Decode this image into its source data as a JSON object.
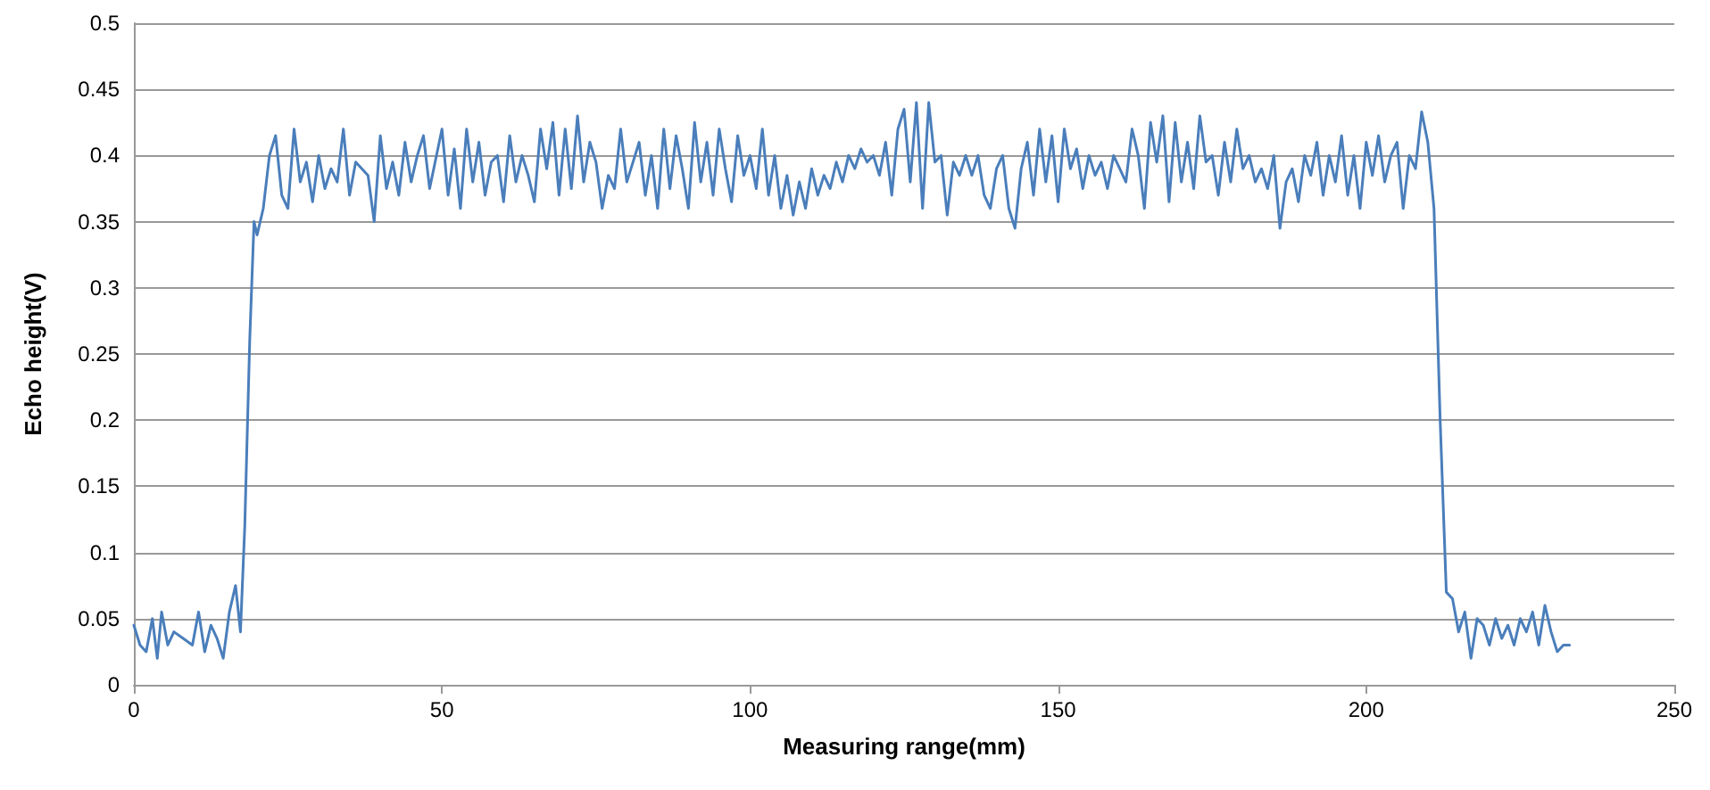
{
  "chart_data": {
    "type": "line",
    "xlabel": "Measuring range(mm)",
    "ylabel": "Echo height(V)",
    "xlim": [
      0,
      250
    ],
    "xticks": [
      0,
      50,
      100,
      150,
      200,
      250
    ],
    "ylim": [
      0,
      0.5
    ],
    "yticks": [
      0,
      0.05,
      0.1,
      0.15,
      0.2,
      0.25,
      0.3,
      0.35,
      0.4,
      0.45,
      0.5
    ],
    "grid": "y",
    "marker": "none",
    "line_style": "solid",
    "series": [
      {
        "color": "#4a7ebb",
        "x": [
          0,
          1,
          2,
          3,
          3.8,
          4.5,
          5.5,
          6.5,
          8,
          9.5,
          10.5,
          11.5,
          12.5,
          13.5,
          14.5,
          15.5,
          16.5,
          17.3,
          18,
          18.8,
          19.5,
          20,
          21,
          22,
          23,
          24,
          25,
          26,
          27,
          28,
          29,
          30,
          31,
          32,
          33,
          34,
          35,
          36,
          38,
          39,
          40,
          41,
          42,
          43,
          44,
          45,
          46,
          47,
          48,
          50,
          51,
          52,
          53,
          54,
          55,
          56,
          57,
          58,
          59,
          60,
          61,
          62,
          63,
          64,
          65,
          66,
          67,
          68,
          69,
          70,
          71,
          72,
          73,
          74,
          75,
          76,
          77,
          78,
          79,
          80,
          81,
          82,
          83,
          84,
          85,
          86,
          87,
          88,
          89,
          90,
          91,
          92,
          93,
          94,
          95,
          96,
          97,
          98,
          99,
          100,
          101,
          102,
          103,
          104,
          105,
          106,
          107,
          108,
          109,
          110,
          111,
          112,
          113,
          114,
          115,
          116,
          117,
          118,
          119,
          120,
          121,
          122,
          123,
          124,
          125,
          126,
          127,
          128,
          129,
          130,
          131,
          132,
          133,
          134,
          135,
          136,
          137,
          138,
          139,
          140,
          141,
          142,
          143,
          144,
          145,
          146,
          147,
          148,
          149,
          150,
          151,
          152,
          153,
          154,
          155,
          156,
          157,
          158,
          159,
          160,
          161,
          162,
          163,
          164,
          165,
          166,
          167,
          168,
          169,
          170,
          171,
          172,
          173,
          174,
          175,
          176,
          177,
          178,
          179,
          180,
          181,
          182,
          183,
          184,
          185,
          186,
          187,
          188,
          189,
          190,
          191,
          192,
          193,
          194,
          195,
          196,
          197,
          198,
          199,
          200,
          201,
          202,
          203,
          204,
          205,
          206,
          207,
          208,
          209,
          210,
          211,
          212,
          213,
          214,
          215,
          216,
          217,
          218,
          219,
          220,
          221,
          222,
          223,
          224,
          225,
          226,
          227,
          228,
          229,
          230,
          231,
          232,
          233
        ],
        "values": [
          0.045,
          0.03,
          0.025,
          0.05,
          0.02,
          0.055,
          0.03,
          0.04,
          0.035,
          0.03,
          0.055,
          0.025,
          0.045,
          0.035,
          0.02,
          0.055,
          0.075,
          0.04,
          0.12,
          0.26,
          0.35,
          0.34,
          0.36,
          0.4,
          0.415,
          0.37,
          0.36,
          0.42,
          0.38,
          0.395,
          0.365,
          0.4,
          0.375,
          0.39,
          0.38,
          0.42,
          0.37,
          0.395,
          0.385,
          0.35,
          0.415,
          0.375,
          0.395,
          0.37,
          0.41,
          0.38,
          0.4,
          0.415,
          0.375,
          0.42,
          0.37,
          0.405,
          0.36,
          0.42,
          0.38,
          0.41,
          0.37,
          0.395,
          0.4,
          0.365,
          0.415,
          0.38,
          0.4,
          0.385,
          0.365,
          0.42,
          0.39,
          0.425,
          0.37,
          0.42,
          0.375,
          0.43,
          0.38,
          0.41,
          0.395,
          0.36,
          0.385,
          0.375,
          0.42,
          0.38,
          0.395,
          0.41,
          0.37,
          0.4,
          0.36,
          0.42,
          0.375,
          0.415,
          0.39,
          0.36,
          0.425,
          0.38,
          0.41,
          0.37,
          0.42,
          0.39,
          0.365,
          0.415,
          0.385,
          0.4,
          0.375,
          0.42,
          0.37,
          0.4,
          0.36,
          0.385,
          0.355,
          0.38,
          0.36,
          0.39,
          0.37,
          0.385,
          0.375,
          0.395,
          0.38,
          0.4,
          0.39,
          0.405,
          0.395,
          0.4,
          0.385,
          0.41,
          0.37,
          0.42,
          0.435,
          0.38,
          0.44,
          0.36,
          0.44,
          0.395,
          0.4,
          0.355,
          0.395,
          0.385,
          0.4,
          0.385,
          0.4,
          0.37,
          0.36,
          0.39,
          0.4,
          0.36,
          0.345,
          0.39,
          0.41,
          0.37,
          0.42,
          0.38,
          0.415,
          0.365,
          0.42,
          0.39,
          0.405,
          0.375,
          0.4,
          0.385,
          0.395,
          0.375,
          0.4,
          0.39,
          0.38,
          0.42,
          0.4,
          0.36,
          0.425,
          0.395,
          0.43,
          0.365,
          0.425,
          0.38,
          0.41,
          0.375,
          0.43,
          0.395,
          0.4,
          0.37,
          0.41,
          0.38,
          0.42,
          0.39,
          0.4,
          0.38,
          0.39,
          0.375,
          0.4,
          0.345,
          0.38,
          0.39,
          0.365,
          0.4,
          0.385,
          0.41,
          0.37,
          0.4,
          0.38,
          0.415,
          0.37,
          0.4,
          0.36,
          0.41,
          0.385,
          0.415,
          0.38,
          0.4,
          0.41,
          0.36,
          0.4,
          0.39,
          0.433,
          0.41,
          0.36,
          0.2,
          0.07,
          0.065,
          0.04,
          0.055,
          0.02,
          0.05,
          0.045,
          0.03,
          0.05,
          0.035,
          0.045,
          0.03,
          0.05,
          0.04,
          0.055,
          0.03,
          0.06,
          0.04,
          0.025,
          0.03,
          0.03
        ]
      }
    ]
  }
}
